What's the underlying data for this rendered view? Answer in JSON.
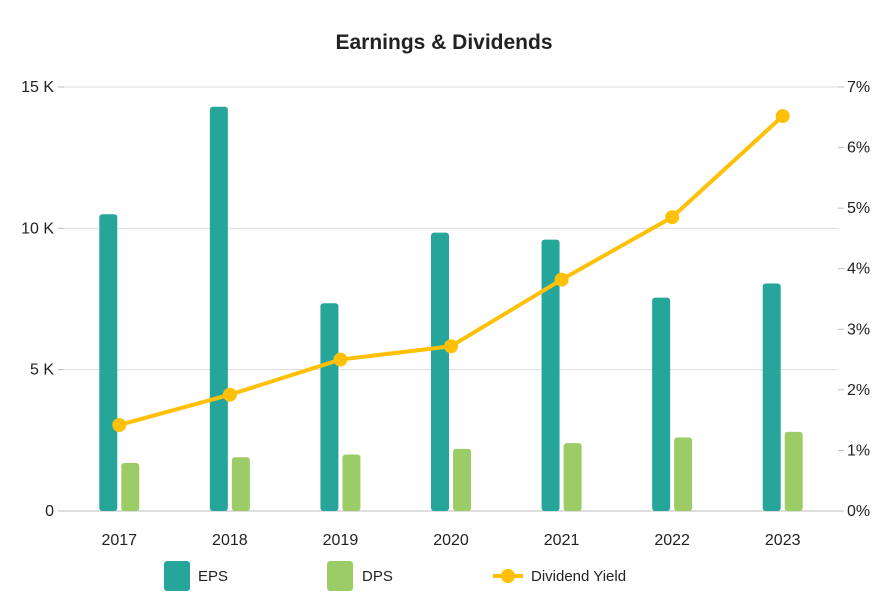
{
  "chart_data": {
    "type": "bar",
    "title": "Earnings & Dividends",
    "categories": [
      "2017",
      "2018",
      "2019",
      "2020",
      "2021",
      "2022",
      "2023"
    ],
    "series": [
      {
        "name": "EPS",
        "kind": "bar",
        "axis": "left",
        "color": "#26a69a",
        "values": [
          10500,
          14300,
          7350,
          9850,
          9600,
          7550,
          8050
        ]
      },
      {
        "name": "DPS",
        "kind": "bar",
        "axis": "left",
        "color": "#9ccc65",
        "values": [
          1700,
          1900,
          2000,
          2200,
          2400,
          2600,
          2800
        ]
      },
      {
        "name": "Dividend Yield",
        "kind": "line",
        "axis": "right",
        "color": "#ffc107",
        "values": [
          1.42,
          1.92,
          2.5,
          2.72,
          3.82,
          4.85,
          6.52
        ]
      }
    ],
    "left_axis": {
      "ylim": [
        0,
        15000
      ],
      "ticks": [
        0,
        5000,
        10000,
        15000
      ],
      "tick_labels": [
        "0",
        "5 K",
        "10 K",
        "15 K"
      ]
    },
    "right_axis": {
      "ylim": [
        0,
        7
      ],
      "ticks": [
        0,
        1,
        2,
        3,
        4,
        5,
        6,
        7
      ],
      "tick_labels": [
        "0%",
        "1%",
        "2%",
        "3%",
        "4%",
        "5%",
        "6%",
        "7%"
      ]
    },
    "grid": true,
    "legend": {
      "position": "bottom",
      "items": [
        "EPS",
        "DPS",
        "Dividend Yield"
      ]
    }
  }
}
